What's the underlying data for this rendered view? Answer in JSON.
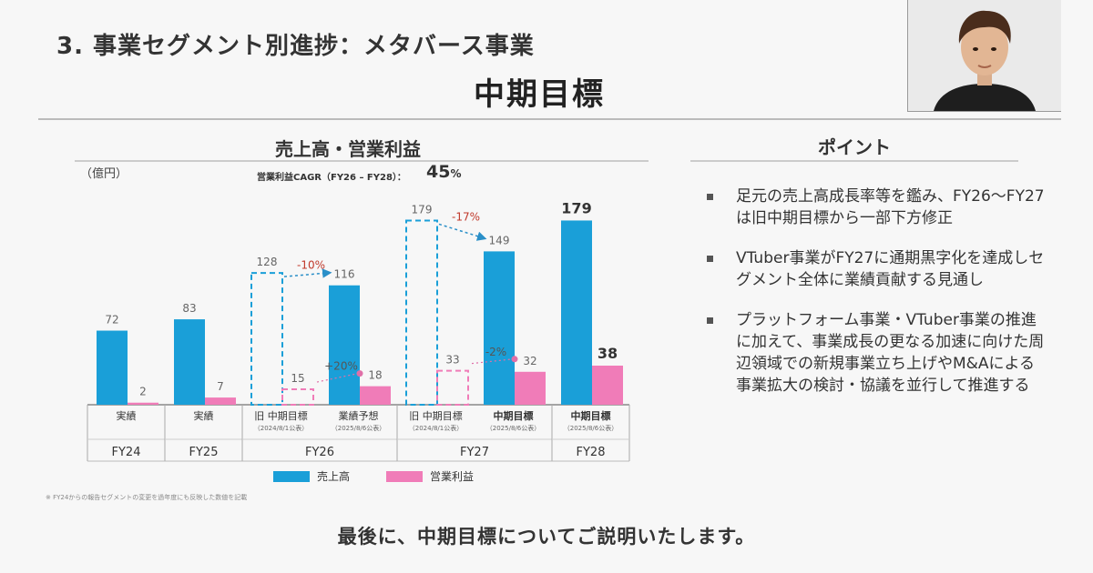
{
  "slide": {
    "title": "3. 事業セグメント別進捗：メタバース事業",
    "subtitle": "中期目標",
    "left_section_title": "売上高・営業利益",
    "right_section_title": "ポイント",
    "points": [
      "足元の売上高成長率等を鑑み、FY26〜FY27は旧中期目標から一部下方修正",
      "VTuber事業がFY27に通期黒字化を達成しセグメント全体に業績貢献する見通し",
      "プラットフォーム事業・VTuber事業の推進に加えて、事業成長の更なる加速に向けた周辺領域での新規事業立ち上げやM&Aによる事業拡大の検討・協議を並行して推進する"
    ],
    "footnote": "※ FY24からの報告セグメントの変更を過年度にも反映した数値を記載",
    "caption": "最後に、中期目標についてご説明いたします。"
  },
  "colors": {
    "revenue": "#1a9fd8",
    "profit": "#f07cb8",
    "arrow": "#2a8fc8",
    "profit_arrow": "#e070a8",
    "change": "#c0392b"
  },
  "chart_data": {
    "type": "bar",
    "title": "売上高・営業利益",
    "unit": "（億円）",
    "cagr_label": "営業利益CAGR（FY26 – FY28）：",
    "cagr_value": "45",
    "cagr_unit": "%",
    "ylim": [
      0,
      190
    ],
    "legend": [
      "売上高",
      "営業利益"
    ],
    "groups": [
      {
        "label": "FY24",
        "columns": [
          {
            "label": "実績",
            "note": "",
            "revenue": 72,
            "profit": 2,
            "style": "solid"
          }
        ]
      },
      {
        "label": "FY25",
        "columns": [
          {
            "label": "実績",
            "note": "",
            "revenue": 83,
            "profit": 7,
            "style": "solid"
          }
        ]
      },
      {
        "label": "FY26",
        "columns": [
          {
            "label": "旧 中期目標",
            "note": "（2024/8/1公表）",
            "revenue": 128,
            "profit": 15,
            "style": "dashed"
          },
          {
            "label": "業績予想",
            "note": "（2025/8/6公表）",
            "revenue": 116,
            "profit": 18,
            "style": "solid"
          }
        ]
      },
      {
        "label": "FY27",
        "columns": [
          {
            "label": "旧 中期目標",
            "note": "（2024/8/1公表）",
            "revenue": 179,
            "profit": 33,
            "style": "dashed"
          },
          {
            "label": "中期目標",
            "note": "（2025/8/6公表）",
            "revenue": 149,
            "profit": 32,
            "style": "solid",
            "bold": true
          }
        ]
      },
      {
        "label": "FY28",
        "columns": [
          {
            "label": "中期目標",
            "note": "（2025/8/6公表）",
            "revenue": 179,
            "profit": 38,
            "style": "solid",
            "bold": true,
            "emphasis": true
          }
        ]
      }
    ],
    "annotations": [
      {
        "series": "revenue",
        "group": 2,
        "from": 0,
        "to": 1,
        "text": "-10%"
      },
      {
        "series": "profit",
        "group": 2,
        "from": 0,
        "to": 1,
        "text": "+20%"
      },
      {
        "series": "revenue",
        "group": 3,
        "from": 0,
        "to": 1,
        "text": "-17%"
      },
      {
        "series": "profit",
        "group": 3,
        "from": 0,
        "to": 1,
        "text": "-2%"
      }
    ]
  }
}
